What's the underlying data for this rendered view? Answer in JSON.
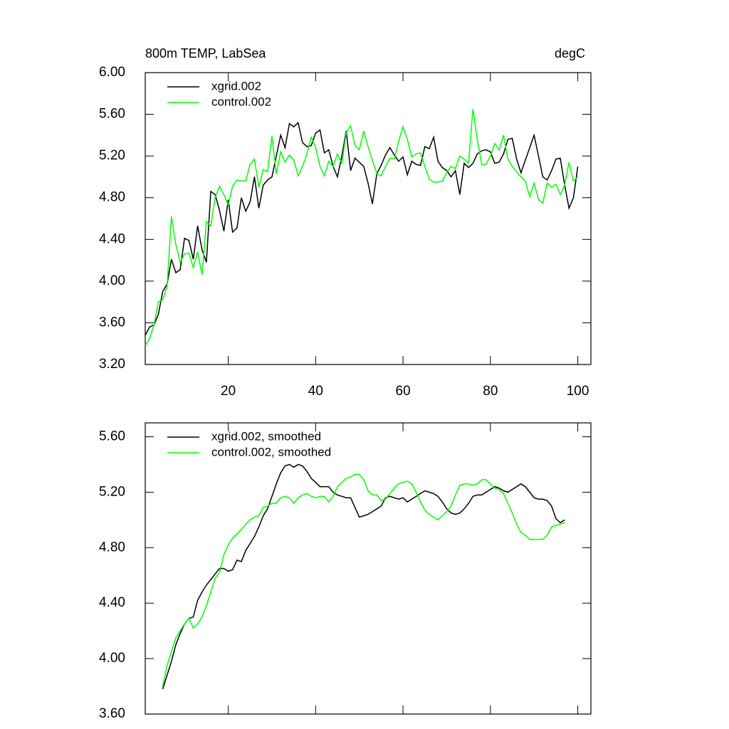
{
  "chart_data": [
    {
      "type": "line",
      "title": "800m TEMP, LabSea",
      "subtitle": "degC",
      "x": [
        1,
        2,
        3,
        4,
        5,
        6,
        7,
        8,
        9,
        10,
        11,
        12,
        13,
        14,
        15,
        16,
        17,
        18,
        19,
        20,
        21,
        22,
        23,
        24,
        25,
        26,
        27,
        28,
        29,
        30,
        31,
        32,
        33,
        34,
        35,
        36,
        37,
        38,
        39,
        40,
        41,
        42,
        43,
        44,
        45,
        46,
        47,
        48,
        49,
        50,
        51,
        52,
        53,
        54,
        55,
        56,
        57,
        58,
        59,
        60,
        61,
        62,
        63,
        64,
        65,
        66,
        67,
        68,
        69,
        70,
        71,
        72,
        73,
        74,
        75,
        76,
        77,
        78,
        79,
        80,
        81,
        82,
        83,
        84,
        85,
        86,
        87,
        88,
        89,
        90,
        91,
        92,
        93,
        94,
        95,
        96,
        97,
        98,
        99,
        100
      ],
      "series": [
        {
          "name": "xgrid.002",
          "color": "#000000",
          "values": [
            3.48,
            3.56,
            3.58,
            3.68,
            3.9,
            3.97,
            4.21,
            4.08,
            4.11,
            4.41,
            4.39,
            4.21,
            4.53,
            4.3,
            4.18,
            4.86,
            4.83,
            4.68,
            4.48,
            4.78,
            4.47,
            4.51,
            4.8,
            4.67,
            4.76,
            5.0,
            4.7,
            4.92,
            4.97,
            5.0,
            5.2,
            5.4,
            5.28,
            5.51,
            5.48,
            5.52,
            5.33,
            5.29,
            5.3,
            5.42,
            5.45,
            5.23,
            5.26,
            5.1,
            5.0,
            5.2,
            5.44,
            5.06,
            5.18,
            5.14,
            5.1,
            4.94,
            4.74,
            5.03,
            5.11,
            5.21,
            5.28,
            5.21,
            5.15,
            5.19,
            5.02,
            5.15,
            5.12,
            5.11,
            5.29,
            5.27,
            5.38,
            5.15,
            5.09,
            5.06,
            5.0,
            5.06,
            4.83,
            5.13,
            5.09,
            5.13,
            5.22,
            5.25,
            5.26,
            5.24,
            5.13,
            5.14,
            5.22,
            5.36,
            5.37,
            5.17,
            5.04,
            5.16,
            5.28,
            5.4,
            5.2,
            5.0,
            4.97,
            5.06,
            5.17,
            5.18,
            4.92,
            4.7,
            4.8,
            5.1
          ]
        },
        {
          "name": "control.002",
          "color": "#00ff00",
          "values": [
            3.38,
            3.45,
            3.58,
            3.8,
            3.82,
            3.95,
            4.62,
            4.35,
            4.18,
            4.26,
            4.27,
            4.13,
            4.28,
            4.06,
            4.57,
            4.53,
            4.8,
            4.91,
            4.83,
            4.73,
            4.91,
            4.97,
            4.96,
            4.96,
            5.12,
            5.17,
            4.9,
            5.07,
            5.05,
            5.39,
            5.03,
            5.24,
            5.14,
            5.21,
            5.16,
            5.01,
            5.1,
            5.22,
            5.38,
            5.28,
            5.1,
            5.01,
            5.15,
            5.1,
            5.22,
            5.13,
            5.42,
            5.49,
            5.3,
            5.26,
            5.44,
            5.29,
            5.16,
            5.03,
            5.01,
            5.1,
            5.18,
            5.17,
            5.34,
            5.48,
            5.36,
            5.19,
            5.22,
            5.23,
            5.1,
            4.98,
            4.95,
            4.95,
            4.96,
            5.04,
            5.1,
            5.08,
            5.2,
            5.17,
            5.13,
            5.65,
            5.36,
            5.12,
            5.12,
            5.2,
            5.32,
            5.26,
            5.4,
            5.17,
            5.1,
            5.05,
            5.0,
            4.96,
            4.81,
            4.94,
            4.78,
            4.75,
            4.94,
            4.9,
            4.93,
            4.83,
            4.92,
            5.14,
            4.96,
            5.0
          ]
        }
      ],
      "xlim": [
        1,
        103
      ],
      "xticks": [
        20,
        40,
        60,
        80,
        100
      ],
      "ylim": [
        3.2,
        6.0
      ],
      "yticks": [
        {
          "value": 3.2,
          "label": "3.20"
        },
        {
          "value": 3.6,
          "label": "3.60"
        },
        {
          "value": 4.0,
          "label": "4.00"
        },
        {
          "value": 4.4,
          "label": "4.40"
        },
        {
          "value": 4.8,
          "label": "4.80"
        },
        {
          "value": 5.2,
          "label": "5.20"
        },
        {
          "value": 5.6,
          "label": "5.60"
        },
        {
          "value": 6.0,
          "label": "6.00"
        }
      ],
      "legend": "upper left"
    },
    {
      "type": "line",
      "x": [
        5,
        6,
        7,
        8,
        9,
        10,
        11,
        12,
        13,
        14,
        15,
        16,
        17,
        18,
        19,
        20,
        21,
        22,
        23,
        24,
        25,
        26,
        27,
        28,
        29,
        30,
        31,
        32,
        33,
        34,
        35,
        36,
        37,
        38,
        39,
        40,
        41,
        42,
        43,
        44,
        45,
        46,
        47,
        48,
        49,
        50,
        51,
        52,
        53,
        54,
        55,
        56,
        57,
        58,
        59,
        60,
        61,
        62,
        63,
        64,
        65,
        66,
        67,
        68,
        69,
        70,
        71,
        72,
        73,
        74,
        75,
        76,
        77,
        78,
        79,
        80,
        81,
        82,
        83,
        84,
        85,
        86,
        87,
        88,
        89,
        90,
        91,
        92,
        93,
        94,
        95,
        96,
        97
      ],
      "series": [
        {
          "name": "xgrid.002, smoothed",
          "color": "#000000",
          "values": [
            3.78,
            3.88,
            3.98,
            4.1,
            4.18,
            4.25,
            4.29,
            4.3,
            4.42,
            4.48,
            4.53,
            4.57,
            4.61,
            4.65,
            4.65,
            4.63,
            4.64,
            4.71,
            4.7,
            4.78,
            4.83,
            4.88,
            4.95,
            5.03,
            5.08,
            5.17,
            5.26,
            5.34,
            5.39,
            5.4,
            5.38,
            5.4,
            5.39,
            5.35,
            5.3,
            5.27,
            5.24,
            5.24,
            5.24,
            5.2,
            5.18,
            5.17,
            5.16,
            5.16,
            5.09,
            5.02,
            5.03,
            5.04,
            5.06,
            5.08,
            5.1,
            5.16,
            5.17,
            5.16,
            5.15,
            5.16,
            5.13,
            5.15,
            5.17,
            5.19,
            5.21,
            5.2,
            5.19,
            5.17,
            5.13,
            5.08,
            5.05,
            5.04,
            5.05,
            5.08,
            5.12,
            5.17,
            5.18,
            5.18,
            5.2,
            5.22,
            5.24,
            5.23,
            5.21,
            5.2,
            5.22,
            5.24,
            5.26,
            5.24,
            5.2,
            5.16,
            5.15,
            5.15,
            5.14,
            5.1,
            5.01,
            4.98,
            5.0
          ]
        },
        {
          "name": "control.002, smoothed",
          "color": "#00ff00",
          "values": [
            3.8,
            3.95,
            4.05,
            4.15,
            4.2,
            4.25,
            4.29,
            4.22,
            4.25,
            4.3,
            4.38,
            4.48,
            4.58,
            4.62,
            4.75,
            4.82,
            4.87,
            4.9,
            4.93,
            4.97,
            5.0,
            5.02,
            5.03,
            5.09,
            5.1,
            5.12,
            5.12,
            5.16,
            5.17,
            5.16,
            5.12,
            5.16,
            5.18,
            5.19,
            5.17,
            5.16,
            5.17,
            5.17,
            5.13,
            5.17,
            5.24,
            5.27,
            5.3,
            5.31,
            5.33,
            5.33,
            5.29,
            5.21,
            5.18,
            5.18,
            5.14,
            5.15,
            5.19,
            5.23,
            5.26,
            5.27,
            5.28,
            5.26,
            5.2,
            5.13,
            5.07,
            5.04,
            5.02,
            5.0,
            5.03,
            5.06,
            5.1,
            5.18,
            5.25,
            5.26,
            5.26,
            5.25,
            5.26,
            5.29,
            5.29,
            5.26,
            5.23,
            5.22,
            5.19,
            5.12,
            5.05,
            4.97,
            4.91,
            4.89,
            4.86,
            4.86,
            4.86,
            4.86,
            4.89,
            4.95,
            4.96,
            4.97,
            4.98
          ]
        }
      ],
      "xlim": [
        1,
        103
      ],
      "xticks": [
        20,
        40,
        60,
        80,
        100
      ],
      "ylim": [
        3.6,
        5.7
      ],
      "yticks": [
        {
          "value": 3.6,
          "label": "3.60"
        },
        {
          "value": 4.0,
          "label": "4.00"
        },
        {
          "value": 4.4,
          "label": "4.40"
        },
        {
          "value": 4.8,
          "label": "4.80"
        },
        {
          "value": 5.2,
          "label": "5.20"
        },
        {
          "value": 5.6,
          "label": "5.60"
        }
      ],
      "legend": "upper left"
    }
  ]
}
